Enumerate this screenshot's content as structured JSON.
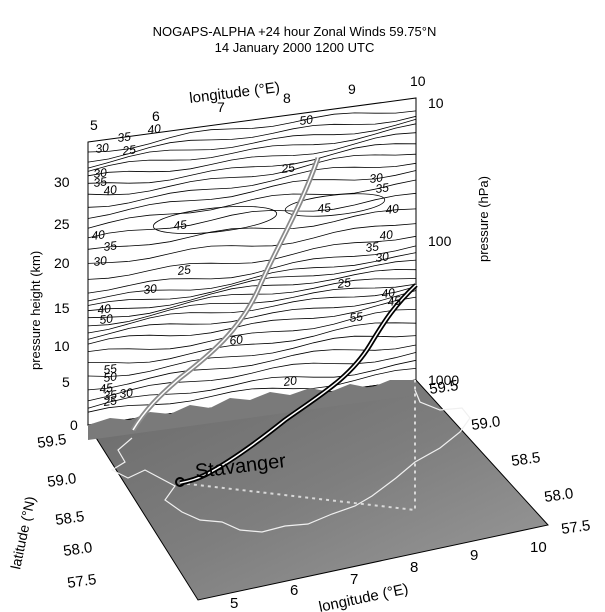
{
  "figure": {
    "title_line1": "NOGAPS-ALPHA +24 hour Zonal Winds 59.75°N",
    "title_line2": "14 January 2000 1200 UTC",
    "place_label": "Stavanger"
  },
  "axes": {
    "top_longitude_label": "longitude (°E)",
    "bottom_longitude_label": "longitude (°E)",
    "latitude_label": "latitude (°N)",
    "height_label": "pressure height (km)",
    "pressure_label": "pressure (hPa)",
    "top_longitude_ticks": [
      "5",
      "6",
      "7",
      "8",
      "9",
      "10"
    ],
    "bottom_longitude_ticks": [
      "5",
      "6",
      "7",
      "8",
      "9",
      "10"
    ],
    "height_ticks": [
      "0",
      "5",
      "10",
      "15",
      "20",
      "25",
      "30"
    ],
    "pressure_ticks": [
      "10",
      "100",
      "1000"
    ],
    "left_latitude_ticks": [
      "59.5",
      "59.0",
      "58.5",
      "58.0",
      "57.5"
    ],
    "right_latitude_ticks": [
      "59.5",
      "59.0",
      "58.5",
      "58.0",
      "57.5"
    ]
  },
  "contour_labels": {
    "top_rows": [
      "35",
      "40",
      "50",
      "30",
      "25"
    ],
    "left_side": [
      "30",
      "35",
      "40",
      "40",
      "35",
      "30",
      "40",
      "50",
      "55",
      "50",
      "45",
      "35",
      "25",
      "30"
    ],
    "right_side": [
      "30",
      "35",
      "40",
      "40",
      "35",
      "30",
      "25",
      "40",
      "45",
      "55"
    ],
    "interior": [
      "25",
      "45",
      "45",
      "25",
      "30",
      "60",
      "20"
    ]
  },
  "colors": {
    "background": "#ffffff",
    "terrain_dark": "#5e5e5e",
    "terrain_light": "#9a9a9a",
    "coastline": "#f0f0f0",
    "trajectory_gray": "#8a8a8a",
    "trajectory_black": "#000000"
  }
}
